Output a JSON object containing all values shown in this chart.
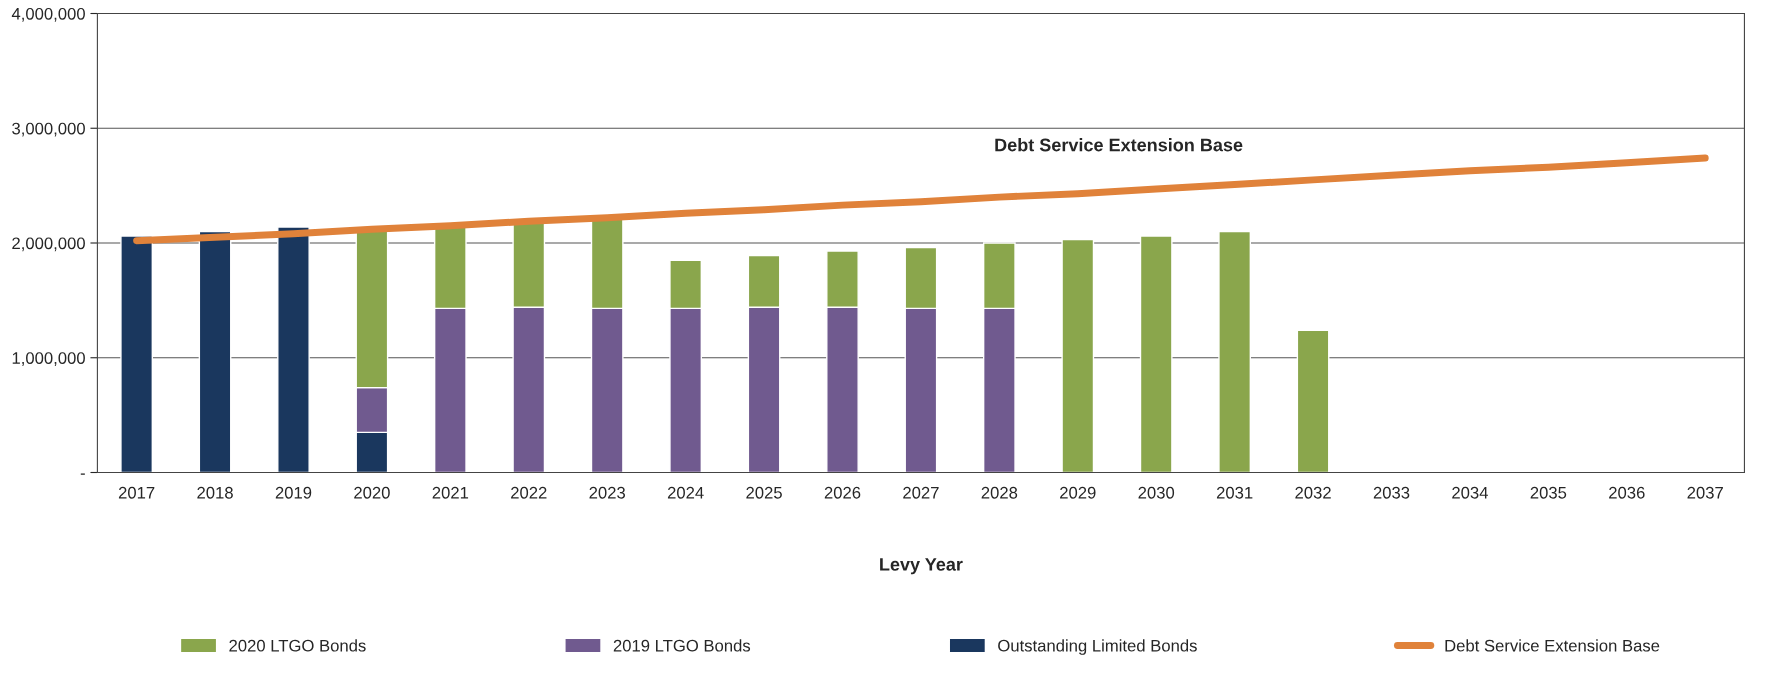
{
  "chart_data": {
    "type": "bar",
    "stacked": true,
    "xlabel": "Levy Year",
    "categories": [
      "2017",
      "2018",
      "2019",
      "2020",
      "2021",
      "2022",
      "2023",
      "2024",
      "2025",
      "2026",
      "2027",
      "2028",
      "2029",
      "2030",
      "2031",
      "2032",
      "2033",
      "2034",
      "2035",
      "2036",
      "2037"
    ],
    "series": [
      {
        "name": "Outstanding Limited Bonds",
        "color": "#1a375e",
        "values": [
          2060000,
          2100000,
          2140000,
          350000,
          null,
          null,
          null,
          null,
          null,
          null,
          null,
          null,
          null,
          null,
          null,
          null,
          null,
          null,
          null,
          null,
          null
        ]
      },
      {
        "name": "2019 LTGO Bonds",
        "color": "#705a8f",
        "values": [
          null,
          null,
          null,
          390000,
          1430000,
          1440000,
          1430000,
          1430000,
          1440000,
          1440000,
          1430000,
          1430000,
          null,
          null,
          null,
          null,
          null,
          null,
          null,
          null,
          null
        ]
      },
      {
        "name": "2020 LTGO Bonds",
        "color": "#8aa64c",
        "values": [
          null,
          null,
          null,
          1380000,
          720000,
          740000,
          790000,
          420000,
          450000,
          490000,
          530000,
          570000,
          2030000,
          2060000,
          2100000,
          1240000,
          null,
          null,
          null,
          null,
          null
        ]
      },
      {
        "name": "Debt Service Extension Base",
        "type": "line",
        "color": "#e0823a",
        "values": [
          2020000,
          2050000,
          2080000,
          2120000,
          2150000,
          2190000,
          2220000,
          2260000,
          2290000,
          2330000,
          2360000,
          2400000,
          2430000,
          2470000,
          2510000,
          2550000,
          2590000,
          2630000,
          2660000,
          2700000,
          2740000
        ]
      }
    ],
    "ylim": [
      0,
      4000000
    ],
    "yticks": [
      {
        "value": 0,
        "label": "-"
      },
      {
        "value": 1000000,
        "label": "1,000,000"
      },
      {
        "value": 2000000,
        "label": "2,000,000"
      },
      {
        "value": 3000000,
        "label": "3,000,000"
      },
      {
        "value": 4000000,
        "label": "4,000,000"
      }
    ],
    "grid": "y",
    "legend": "bottom",
    "annotations": [
      "Debt Service Extension Base"
    ]
  }
}
